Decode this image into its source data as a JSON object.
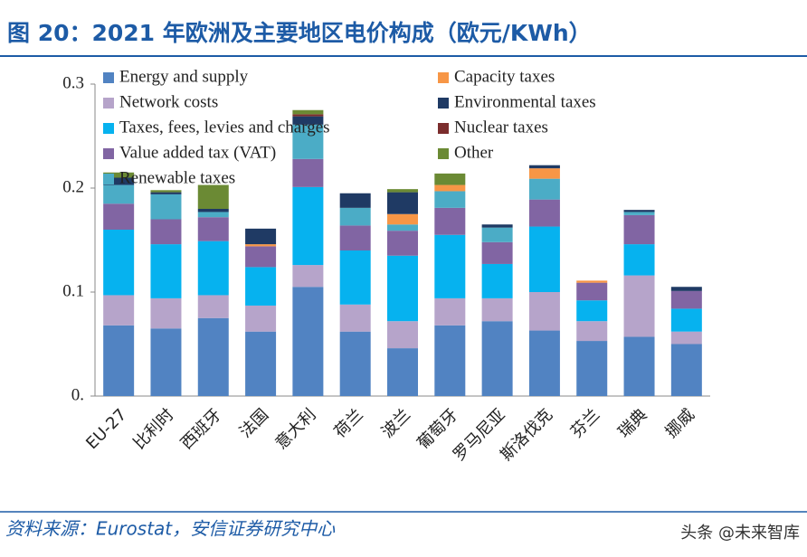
{
  "chart_data": {
    "type": "stacked_bar",
    "title": "图 20：2021 年欧洲及主要地区电价构成（欧元/KWh）",
    "source": "资料来源：Eurostat，安信证券研究中心",
    "watermark": "头条 @未来智库",
    "categories": [
      "EU-27",
      "比利时",
      "西班牙",
      "法国",
      "意大利",
      "荷兰",
      "波兰",
      "葡萄牙",
      "罗马尼亚",
      "斯洛伐克",
      "芬兰",
      "瑞典",
      "挪威"
    ],
    "ylim": [
      0,
      0.3
    ],
    "yticks": [
      {
        "value": 0,
        "label": "0."
      },
      0.1,
      0.2,
      0.3
    ],
    "series": [
      {
        "name": "Energy and supply",
        "color": "#5183c2",
        "values": [
          0.068,
          0.065,
          0.075,
          0.062,
          0.105,
          0.062,
          0.046,
          0.068,
          0.072,
          0.063,
          0.053,
          0.057,
          0.05
        ]
      },
      {
        "name": "Network costs",
        "color": "#b6a4ca",
        "values": [
          0.029,
          0.029,
          0.022,
          0.025,
          0.021,
          0.026,
          0.026,
          0.026,
          0.022,
          0.037,
          0.019,
          0.059,
          0.012
        ]
      },
      {
        "name": "Taxes, fees, levies and charges",
        "color": "#06b2ef",
        "values": [
          0.063,
          0.052,
          0.052,
          0.037,
          0.075,
          0.052,
          0.063,
          0.061,
          0.033,
          0.063,
          0.02,
          0.03,
          0.022
        ]
      },
      {
        "name": "Value added tax (VAT)",
        "color": "#8165a3",
        "values": [
          0.025,
          0.024,
          0.023,
          0.02,
          0.027,
          0.024,
          0.024,
          0.026,
          0.021,
          0.026,
          0.017,
          0.028,
          0.017
        ]
      },
      {
        "name": "Renewable taxes",
        "color": "#4bacc6",
        "values": [
          0.018,
          0.024,
          0.005,
          0,
          0.033,
          0.017,
          0.006,
          0.016,
          0.014,
          0.02,
          0,
          0.003,
          0
        ]
      },
      {
        "name": "Capacity taxes",
        "color": "#f79646",
        "values": [
          0,
          0,
          0,
          0.002,
          0,
          0,
          0.01,
          0.006,
          0,
          0.01,
          0.002,
          0,
          0
        ]
      },
      {
        "name": "Environmental taxes",
        "color": "#1f3a64",
        "values": [
          0.007,
          0.002,
          0.003,
          0.015,
          0.008,
          0.014,
          0.021,
          0,
          0.003,
          0.003,
          0,
          0.002,
          0.004
        ]
      },
      {
        "name": "Nuclear taxes",
        "color": "#7b2d2d",
        "values": [
          0,
          0,
          0,
          0,
          0.002,
          0,
          0,
          0,
          0,
          0,
          0,
          0,
          0
        ]
      },
      {
        "name": "Other",
        "color": "#6b8a34",
        "values": [
          0.005,
          0.002,
          0.023,
          0,
          0.004,
          0,
          0.003,
          0.011,
          0,
          0,
          0,
          0,
          0
        ]
      }
    ]
  }
}
